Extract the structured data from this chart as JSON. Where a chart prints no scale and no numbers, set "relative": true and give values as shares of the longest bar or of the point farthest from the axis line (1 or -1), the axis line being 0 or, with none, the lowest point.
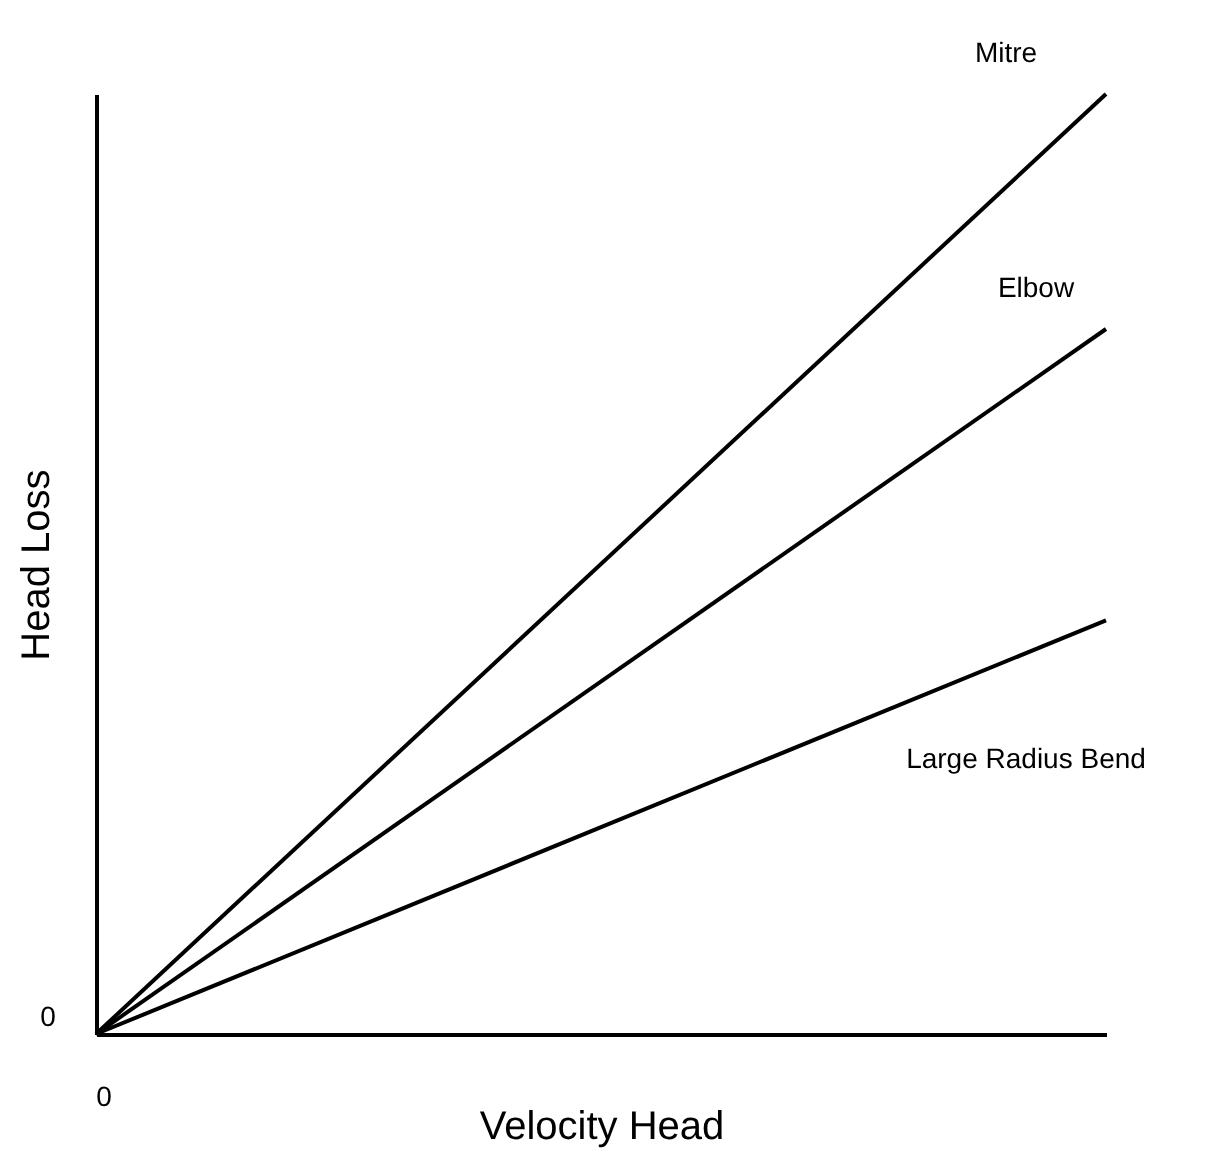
{
  "chart_data": {
    "type": "line",
    "xlabel": "Velocity Head",
    "ylabel": "Head Loss",
    "categories": [
      null,
      null
    ],
    "relative": true,
    "legend": false,
    "grid": false,
    "annotations": [
      "0",
      "0"
    ],
    "series": [
      {
        "name": "Mitre",
        "color": "#000000",
        "values": [
          0,
          1
        ]
      },
      {
        "name": "Elbow",
        "color": "#000000",
        "values": [
          0,
          0.75
        ]
      },
      {
        "name": "Large Radius Bend",
        "color": "#000000",
        "values": [
          0,
          0.44
        ]
      }
    ]
  }
}
